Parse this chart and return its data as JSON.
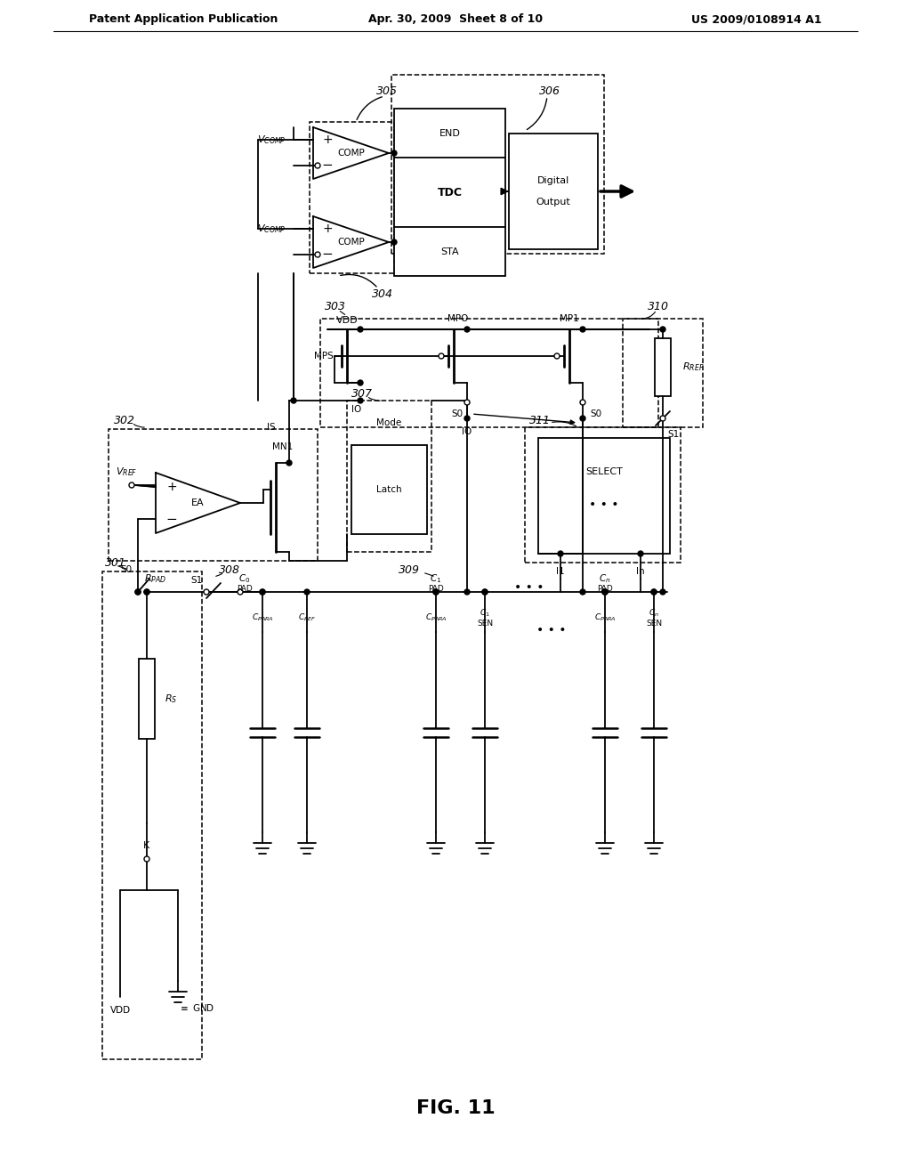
{
  "bg_color": "#ffffff",
  "header_left": "Patent Application Publication",
  "header_center": "Apr. 30, 2009  Sheet 8 of 10",
  "header_right": "US 2009/0108914 A1",
  "figure_label": "FIG. 11"
}
